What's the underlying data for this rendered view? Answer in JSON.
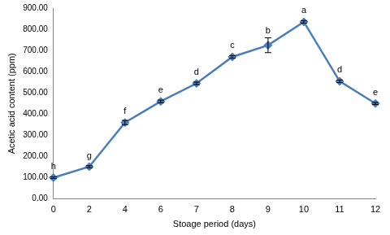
{
  "chart_data": {
    "type": "line",
    "x_label": "Stoage period (days)",
    "y_label": "Acetic acid content (ppm)",
    "categories": [
      "0",
      "2",
      "4",
      "6",
      "7",
      "8",
      "9",
      "10",
      "11",
      "12"
    ],
    "values": [
      100,
      152,
      360,
      460,
      545,
      670,
      725,
      835,
      555,
      450
    ],
    "errors": [
      4,
      5,
      10,
      6,
      6,
      6,
      35,
      6,
      6,
      5
    ],
    "point_labels": [
      "h",
      "g",
      "f",
      "e",
      "d",
      "c",
      "b",
      "a",
      "d",
      "e"
    ],
    "color": "#4a7ebb",
    "marker": "diamond",
    "grid": false,
    "ylim": [
      0,
      900
    ],
    "yticks": [
      {
        "value": 0,
        "label": "0.00"
      },
      {
        "value": 100,
        "label": "100.00"
      },
      {
        "value": 200,
        "label": "200.00"
      },
      {
        "value": 300,
        "label": "300.00"
      },
      {
        "value": 400,
        "label": "400.00"
      },
      {
        "value": 500,
        "label": "500.00"
      },
      {
        "value": 600,
        "label": "600.00"
      },
      {
        "value": 700,
        "label": "700.00"
      },
      {
        "value": 800,
        "label": "800.00"
      },
      {
        "value": 900,
        "label": "900.00"
      }
    ]
  }
}
